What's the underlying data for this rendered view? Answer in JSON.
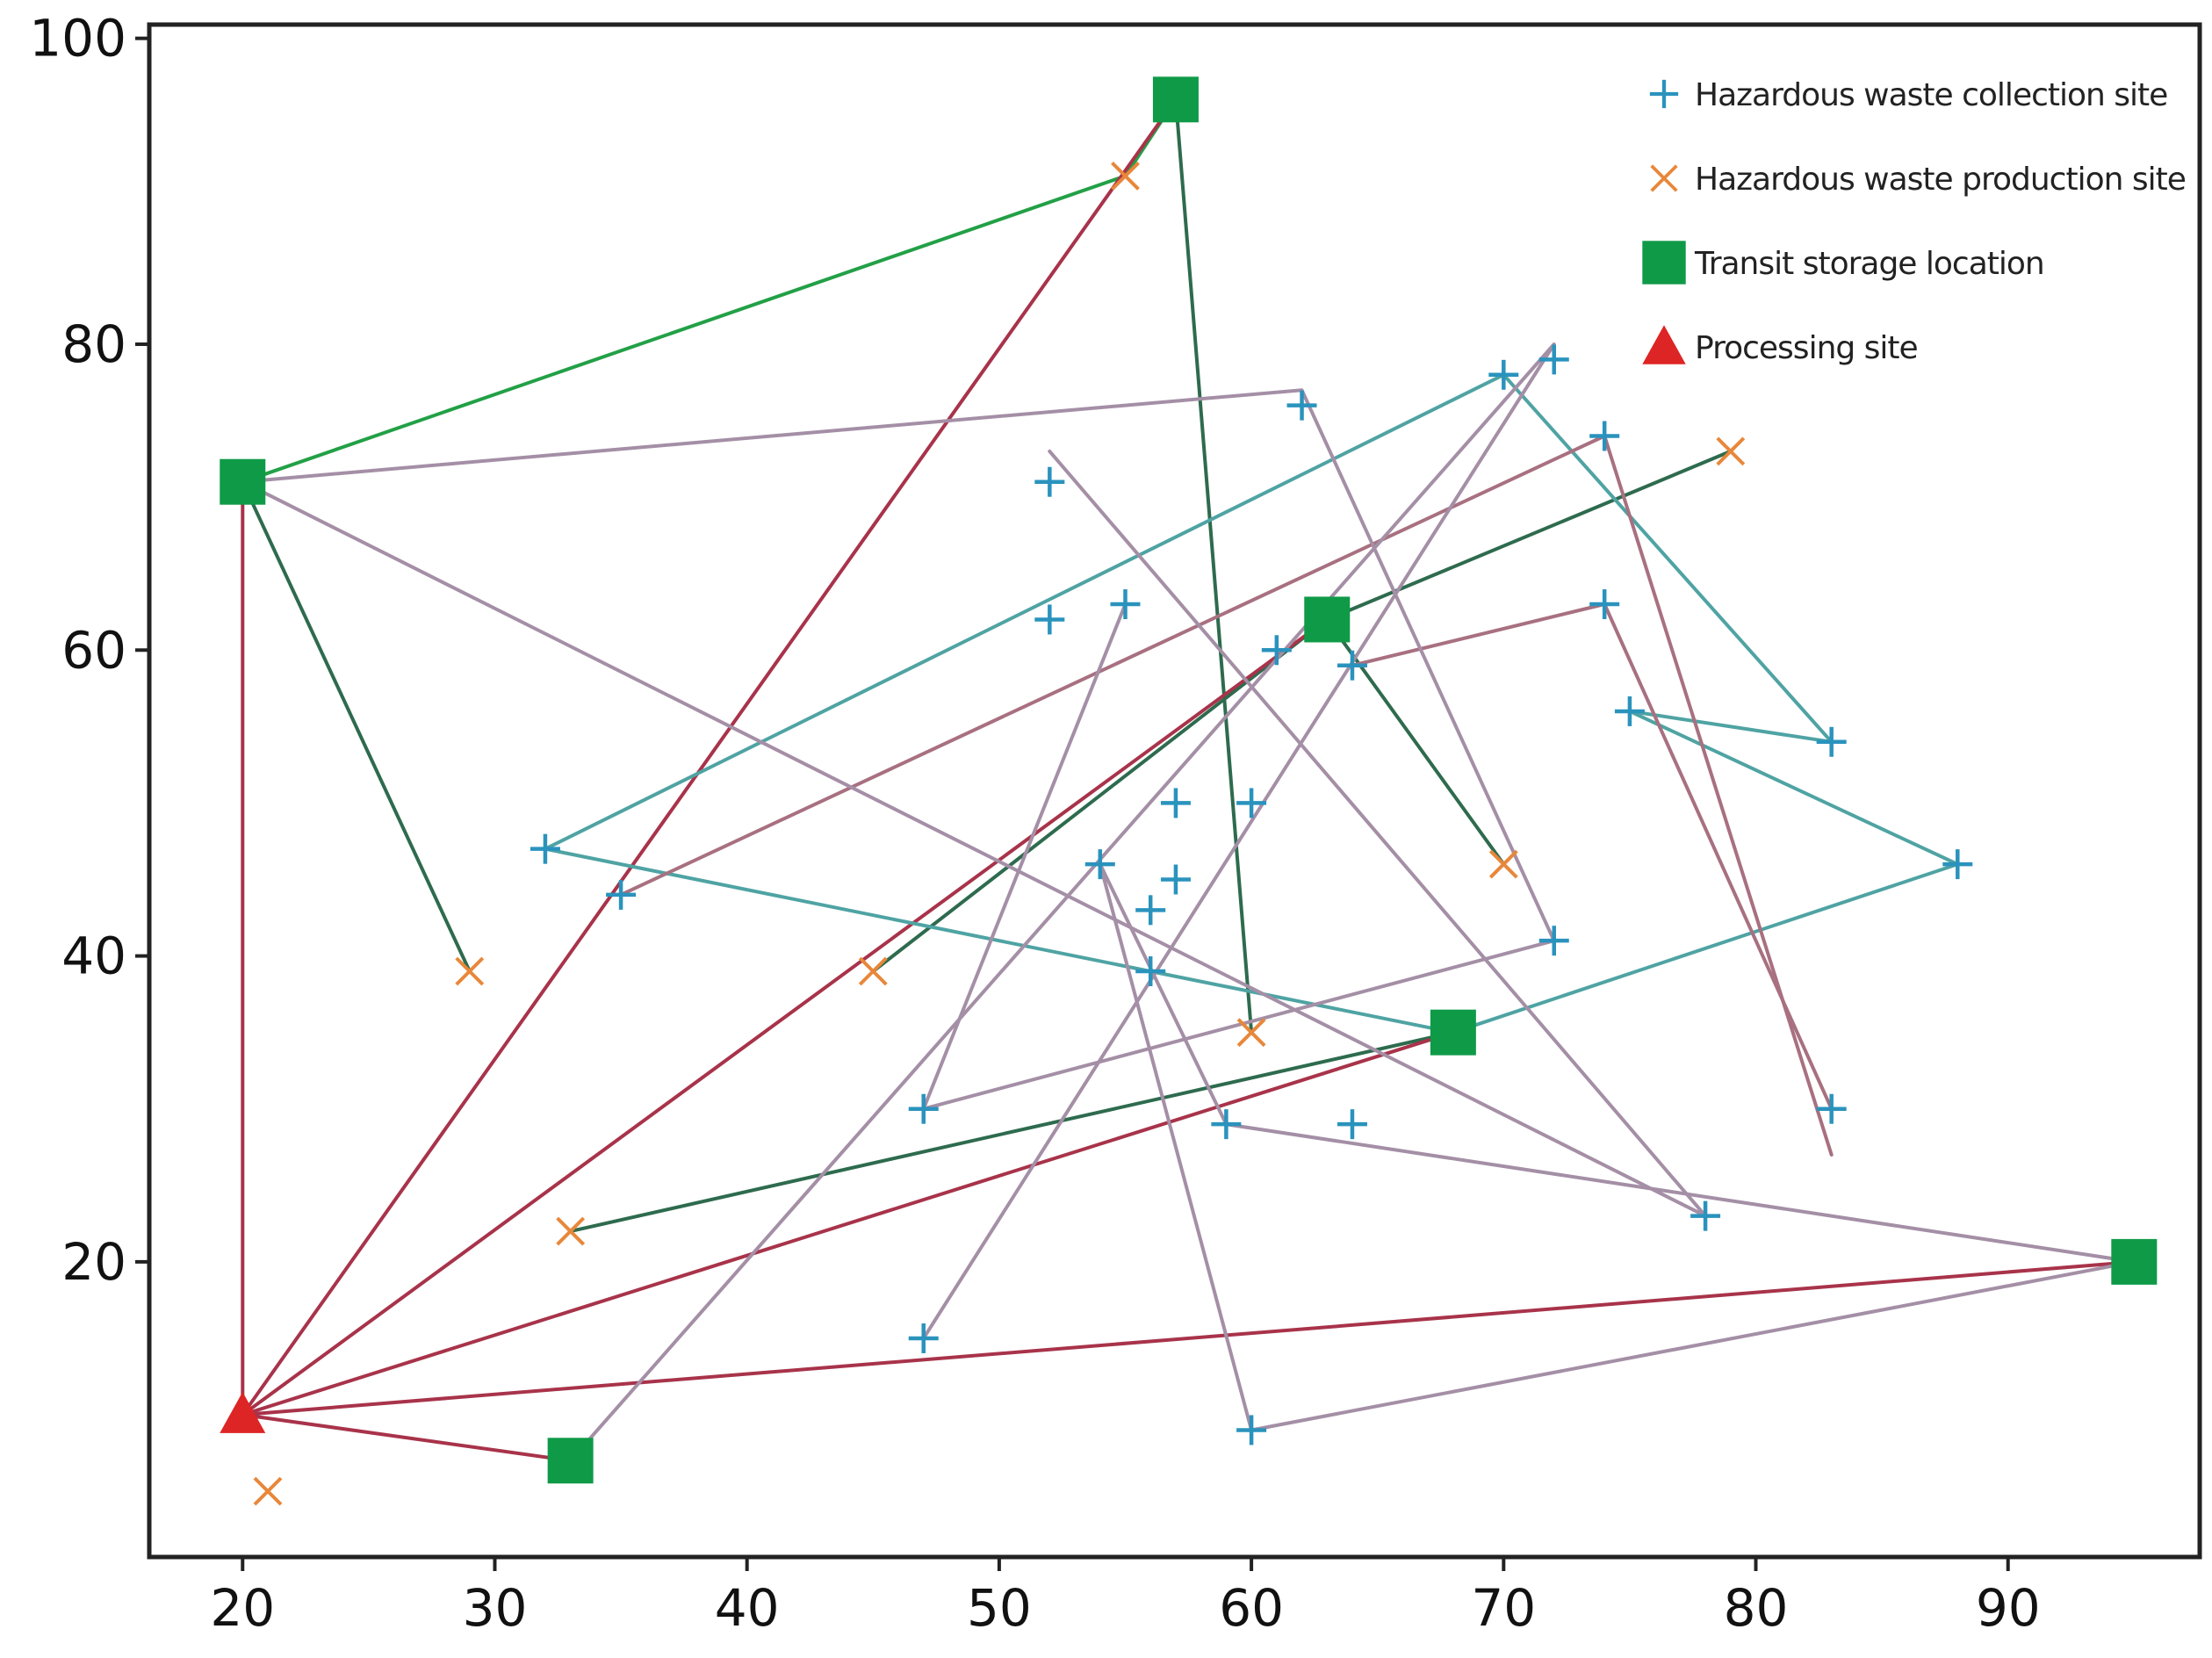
{
  "chart_data": {
    "type": "scatter",
    "title": "",
    "xlabel": "",
    "ylabel": "",
    "xlim": [
      16.3,
      97.6
    ],
    "ylim": [
      0.7,
      100.9
    ],
    "x_ticks": [
      20,
      30,
      40,
      50,
      60,
      70,
      80,
      90
    ],
    "y_ticks": [
      20,
      40,
      60,
      80,
      100
    ],
    "grid": false,
    "legend_position": "top-right",
    "colors": {
      "collection": "#2a93bd",
      "production": "#e8873a",
      "storage": "#0f9a47",
      "processing": "#dd2525",
      "route_light_green": "#22a046",
      "route_dark_green": "#2e6b4e",
      "route_teal": "#4fa3a3",
      "route_crimson": "#a8334a",
      "route_rose": "#a87080",
      "route_gray": "#a48fa6"
    },
    "legend": [
      {
        "key": "collection",
        "label": "Hazardous waste collection site"
      },
      {
        "key": "production",
        "label": "Hazardous waste production site"
      },
      {
        "key": "storage",
        "label": "Transit storage location"
      },
      {
        "key": "processing",
        "label": "Processing site"
      }
    ],
    "series": [
      {
        "name": "Hazardous waste collection site",
        "key": "collection",
        "points": [
          [
            32,
            47
          ],
          [
            35,
            44
          ],
          [
            47,
            30
          ],
          [
            47,
            15
          ],
          [
            52,
            71
          ],
          [
            52,
            62
          ],
          [
            55,
            63
          ],
          [
            54,
            46
          ],
          [
            56,
            43
          ],
          [
            56,
            39
          ],
          [
            57,
            45
          ],
          [
            57,
            50
          ],
          [
            59,
            29
          ],
          [
            60,
            50
          ],
          [
            60,
            9
          ],
          [
            61,
            60
          ],
          [
            62,
            76
          ],
          [
            64,
            59
          ],
          [
            64,
            29
          ],
          [
            70,
            78
          ],
          [
            72,
            79
          ],
          [
            72,
            41
          ],
          [
            74,
            74
          ],
          [
            74,
            63
          ],
          [
            75,
            56
          ],
          [
            78,
            23
          ],
          [
            83,
            54
          ],
          [
            83,
            30
          ],
          [
            88,
            46
          ]
        ]
      },
      {
        "name": "Hazardous waste production site",
        "key": "production",
        "points": [
          [
            21,
            5
          ],
          [
            29,
            39
          ],
          [
            33,
            22
          ],
          [
            45,
            39
          ],
          [
            55,
            91
          ],
          [
            60,
            35
          ],
          [
            70,
            46
          ],
          [
            79,
            73
          ]
        ]
      },
      {
        "name": "Transit storage location",
        "key": "storage",
        "points": [
          [
            20,
            71
          ],
          [
            57,
            96
          ],
          [
            63,
            62
          ],
          [
            68,
            35
          ],
          [
            33,
            7
          ],
          [
            95,
            20
          ]
        ]
      },
      {
        "name": "Processing site",
        "key": "processing",
        "points": [
          [
            20,
            10
          ]
        ]
      }
    ],
    "routes": [
      {
        "color": "route_light_green",
        "points": [
          [
            20,
            71
          ],
          [
            55,
            91
          ],
          [
            57,
            96
          ]
        ]
      },
      {
        "color": "route_dark_green",
        "points": [
          [
            20,
            71
          ],
          [
            29,
            39
          ]
        ]
      },
      {
        "color": "route_dark_green",
        "points": [
          [
            57,
            96
          ],
          [
            60,
            35
          ]
        ]
      },
      {
        "color": "route_dark_green",
        "points": [
          [
            45,
            39
          ],
          [
            63,
            62
          ],
          [
            79,
            73
          ]
        ]
      },
      {
        "color": "route_dark_green",
        "points": [
          [
            63,
            62
          ],
          [
            70,
            46
          ]
        ]
      },
      {
        "color": "route_dark_green",
        "points": [
          [
            33,
            22
          ],
          [
            68,
            35
          ]
        ]
      },
      {
        "color": "route_crimson",
        "points": [
          [
            20,
            10
          ],
          [
            20,
            71
          ]
        ]
      },
      {
        "color": "route_crimson",
        "points": [
          [
            20,
            10
          ],
          [
            57,
            96
          ]
        ]
      },
      {
        "color": "route_crimson",
        "points": [
          [
            20,
            10
          ],
          [
            63,
            62
          ]
        ]
      },
      {
        "color": "route_crimson",
        "points": [
          [
            20,
            10
          ],
          [
            68,
            35
          ]
        ]
      },
      {
        "color": "route_crimson",
        "points": [
          [
            20,
            10
          ],
          [
            95,
            20
          ]
        ]
      },
      {
        "color": "route_crimson",
        "points": [
          [
            20,
            10
          ],
          [
            33,
            7
          ]
        ]
      },
      {
        "color": "route_teal",
        "points": [
          [
            68,
            35
          ],
          [
            32,
            47
          ],
          [
            70,
            78
          ],
          [
            83,
            54
          ],
          [
            75,
            56
          ],
          [
            88,
            46
          ],
          [
            68,
            35
          ]
        ]
      },
      {
        "color": "route_rose",
        "points": [
          [
            35,
            44
          ],
          [
            74,
            74
          ],
          [
            83,
            27
          ]
        ]
      },
      {
        "color": "route_rose",
        "points": [
          [
            64,
            59
          ],
          [
            74,
            63
          ],
          [
            83,
            30
          ]
        ]
      },
      {
        "color": "route_gray",
        "points": [
          [
            20,
            71
          ],
          [
            62,
            77
          ],
          [
            72,
            41
          ],
          [
            47,
            30
          ],
          [
            55,
            63
          ]
        ]
      },
      {
        "color": "route_gray",
        "points": [
          [
            20,
            71
          ],
          [
            78,
            23
          ],
          [
            52,
            73
          ]
        ]
      },
      {
        "color": "route_gray",
        "points": [
          [
            95,
            20
          ],
          [
            59,
            29
          ],
          [
            54,
            46
          ],
          [
            60,
            9
          ],
          [
            95,
            20
          ]
        ]
      },
      {
        "color": "route_gray",
        "points": [
          [
            33,
            7
          ],
          [
            72,
            80
          ],
          [
            47,
            15
          ]
        ]
      }
    ]
  }
}
